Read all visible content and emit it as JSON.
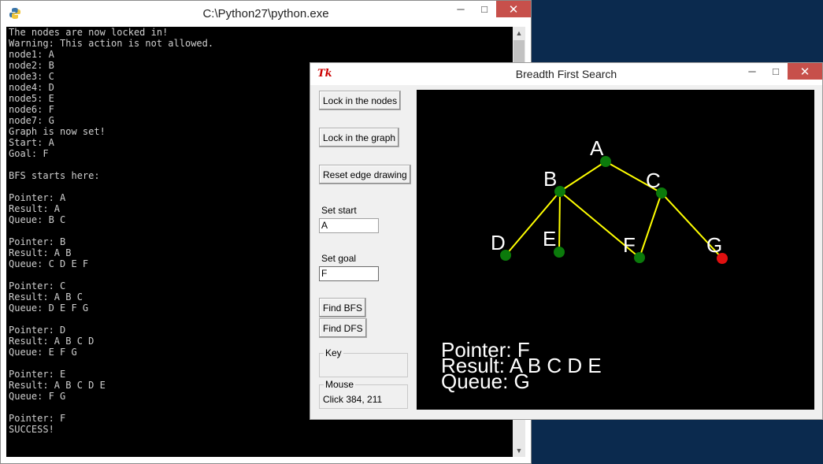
{
  "console": {
    "title": "C:\\Python27\\python.exe",
    "lines": [
      "The nodes are now locked in!",
      "Warning: This action is not allowed.",
      "node1: A",
      "node2: B",
      "node3: C",
      "node4: D",
      "node5: E",
      "node6: F",
      "node7: G",
      "Graph is now set!",
      "Start: A",
      "Goal: F",
      "",
      "BFS starts here:",
      "",
      "Pointer: A",
      "Result: A",
      "Queue: B C",
      "",
      "Pointer: B",
      "Result: A B",
      "Queue: C D E F",
      "",
      "Pointer: C",
      "Result: A B C",
      "Queue: D E F G",
      "",
      "Pointer: D",
      "Result: A B C D",
      "Queue: E F G",
      "",
      "Pointer: E",
      "Result: A B C D E",
      "Queue: F G",
      "",
      "Pointer: F",
      "SUCCESS!"
    ],
    "window_buttons": {
      "minimize": "─",
      "maximize": "□",
      "close": "✕"
    }
  },
  "bfs": {
    "title": "Breadth First Search",
    "tk_icon": "Tk",
    "window_buttons": {
      "minimize": "─",
      "maximize": "□",
      "close": "✕"
    },
    "buttons": {
      "lock_nodes": "Lock in the nodes",
      "lock_graph": "Lock in the graph",
      "reset_edges": "Reset edge drawing",
      "find_bfs": "Find BFS",
      "find_dfs": "Find DFS"
    },
    "set_start_label": "Set start",
    "set_start_value": "A",
    "set_goal_label": "Set goal",
    "set_goal_value": "F",
    "key_label": "Key",
    "mouse_label": "Mouse",
    "mouse_value": "Click 384, 211",
    "colors": {
      "node": "#0b7a0b",
      "goal_node": "#e01010",
      "edge": "#ffff00",
      "canvas_bg": "#000000",
      "text": "#ffffff"
    },
    "nodes": [
      {
        "id": "A",
        "label": "A",
        "status": "visited"
      },
      {
        "id": "B",
        "label": "B",
        "status": "visited"
      },
      {
        "id": "C",
        "label": "C",
        "status": "visited"
      },
      {
        "id": "D",
        "label": "D",
        "status": "visited"
      },
      {
        "id": "E",
        "label": "E",
        "status": "visited"
      },
      {
        "id": "F",
        "label": "F",
        "status": "visited"
      },
      {
        "id": "G",
        "label": "G",
        "status": "queued"
      }
    ],
    "edges": [
      [
        "A",
        "B"
      ],
      [
        "A",
        "C"
      ],
      [
        "B",
        "D"
      ],
      [
        "B",
        "E"
      ],
      [
        "B",
        "F"
      ],
      [
        "C",
        "F"
      ],
      [
        "C",
        "G"
      ]
    ],
    "pointer_text": "Pointer: F",
    "result_text": "Result: A B C D E",
    "queue_text": "Queue: G"
  }
}
